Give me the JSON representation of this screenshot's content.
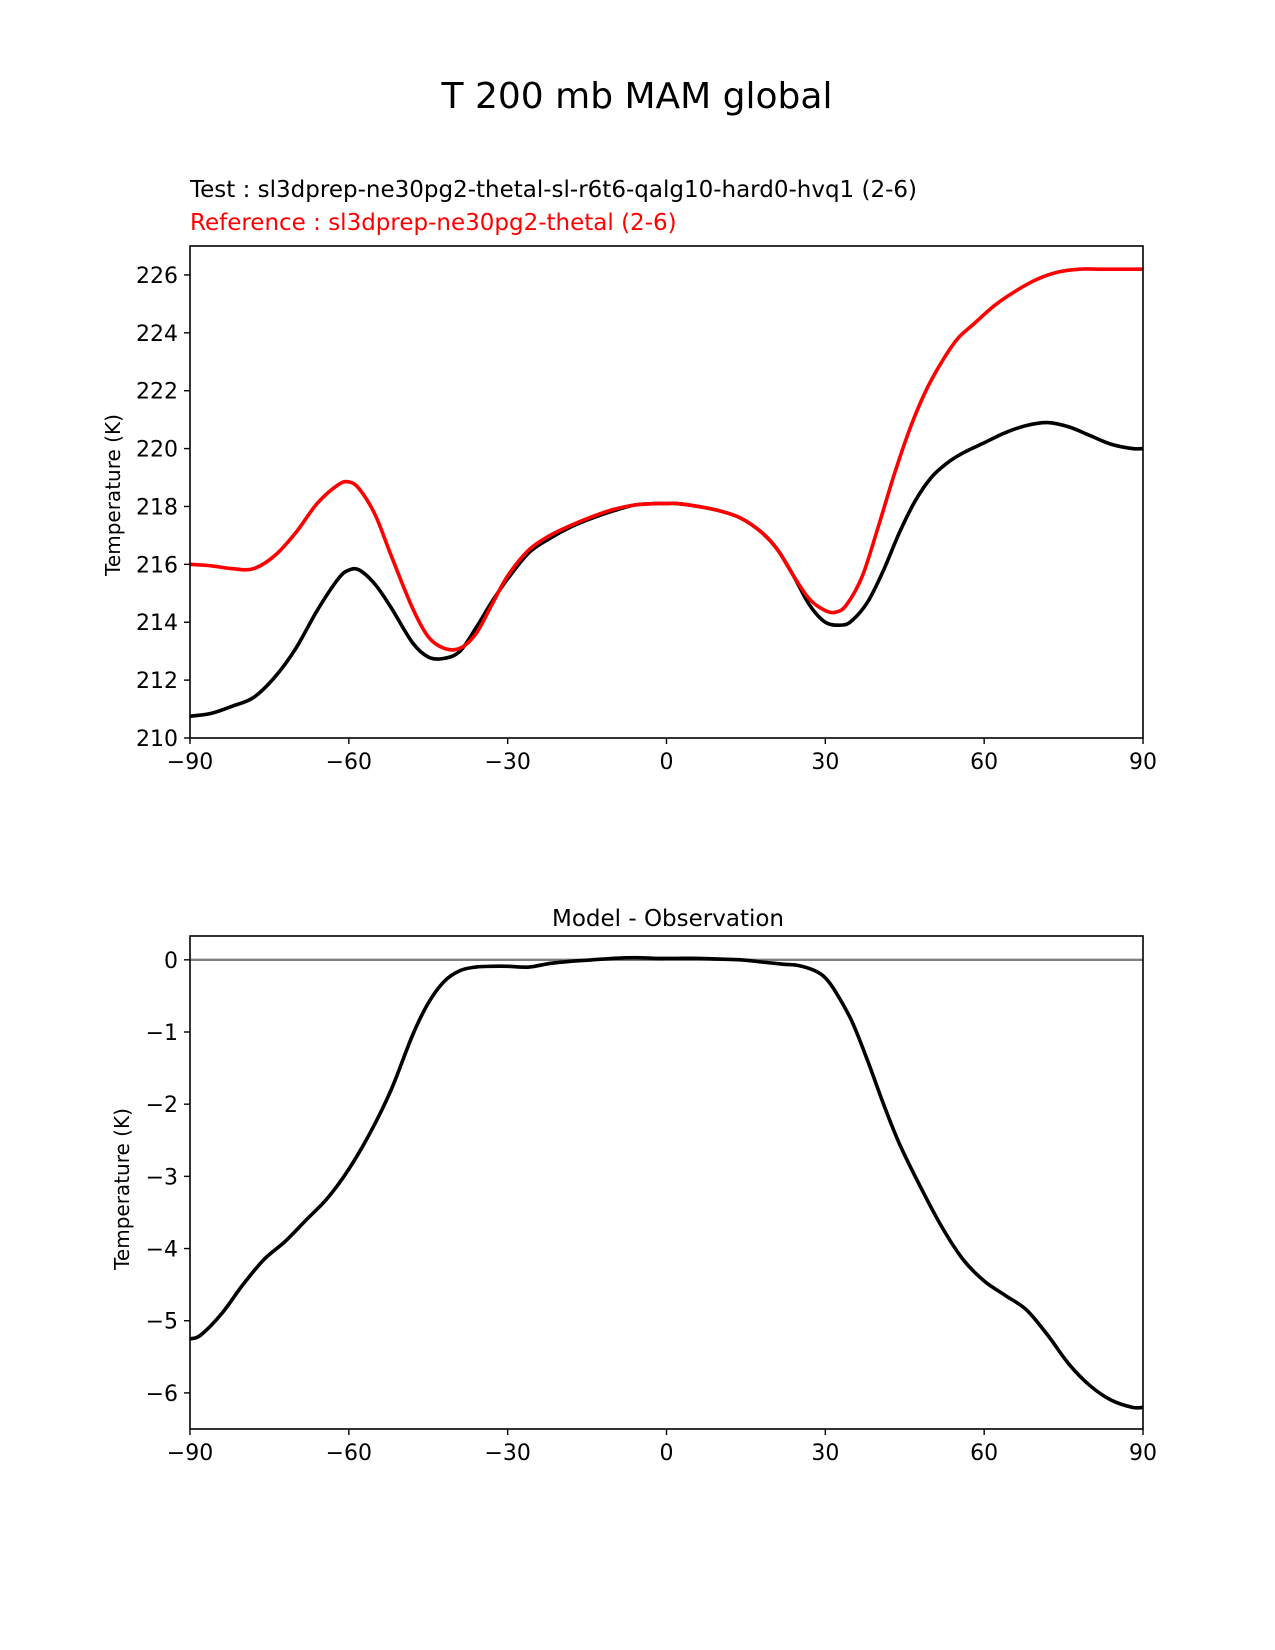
{
  "figure": {
    "title": "T 200 mb MAM global",
    "test_label": "Test : sl3dprep-ne30pg2-thetal-sl-r6t6-qalg10-hard0-hvq1 (2-6)",
    "reference_label": "Reference : sl3dprep-ne30pg2-thetal (2-6)"
  },
  "colors": {
    "test": "#000000",
    "reference": "#ff0000",
    "zero_line": "#808080"
  },
  "chart_data": [
    {
      "type": "line",
      "title": "",
      "xlabel": "",
      "ylabel": "Temperature (K)",
      "xlim": [
        -90,
        90
      ],
      "ylim": [
        210,
        227
      ],
      "xticks": [
        -90,
        -60,
        -30,
        0,
        30,
        60,
        90
      ],
      "xtick_labels": [
        "−90",
        "−60",
        "−30",
        "0",
        "30",
        "60",
        "90"
      ],
      "yticks": [
        210,
        212,
        214,
        216,
        218,
        220,
        222,
        224,
        226
      ],
      "ytick_labels": [
        "210",
        "212",
        "214",
        "216",
        "218",
        "220",
        "222",
        "224",
        "226"
      ],
      "grid": false,
      "series": [
        {
          "role": "test",
          "x": [
            -90,
            -86,
            -82,
            -78,
            -74,
            -70,
            -66,
            -62,
            -60,
            -58,
            -55,
            -52,
            -48,
            -45,
            -42,
            -39,
            -36,
            -33,
            -30,
            -26,
            -22,
            -18,
            -14,
            -10,
            -6,
            -2,
            0,
            2,
            6,
            10,
            14,
            18,
            21,
            24,
            27,
            30,
            33,
            35,
            38,
            41,
            44,
            47,
            50,
            53,
            56,
            60,
            64,
            68,
            72,
            76,
            80,
            84,
            88,
            90
          ],
          "y": [
            210.75,
            210.85,
            211.1,
            211.4,
            212.1,
            213.1,
            214.4,
            215.5,
            215.8,
            215.8,
            215.3,
            214.5,
            213.3,
            212.8,
            212.75,
            213.0,
            213.8,
            214.7,
            215.5,
            216.4,
            216.9,
            217.3,
            217.6,
            217.85,
            218.05,
            218.1,
            218.1,
            218.1,
            218.0,
            217.85,
            217.6,
            217.1,
            216.5,
            215.6,
            214.6,
            214.0,
            213.9,
            214.05,
            214.7,
            215.8,
            217.1,
            218.2,
            219.0,
            219.5,
            219.85,
            220.2,
            220.55,
            220.8,
            220.9,
            220.75,
            220.45,
            220.15,
            220.0,
            220.0
          ]
        },
        {
          "role": "reference",
          "x": [
            -90,
            -86,
            -82,
            -78,
            -74,
            -70,
            -66,
            -62,
            -60,
            -58,
            -55,
            -52,
            -48,
            -45,
            -42,
            -39,
            -36,
            -33,
            -30,
            -26,
            -22,
            -18,
            -14,
            -10,
            -6,
            -2,
            0,
            2,
            6,
            10,
            14,
            18,
            21,
            24,
            27,
            30,
            32,
            34,
            37,
            40,
            43,
            46,
            49,
            52,
            55,
            58,
            62,
            66,
            70,
            74,
            78,
            82,
            86,
            90
          ],
          "y": [
            216.0,
            215.95,
            215.85,
            215.85,
            216.3,
            217.1,
            218.1,
            218.75,
            218.85,
            218.6,
            217.7,
            216.3,
            214.5,
            213.5,
            213.1,
            213.1,
            213.6,
            214.6,
            215.6,
            216.5,
            217.0,
            217.35,
            217.65,
            217.9,
            218.05,
            218.1,
            218.1,
            218.1,
            218.0,
            217.85,
            217.6,
            217.1,
            216.5,
            215.6,
            214.8,
            214.4,
            214.35,
            214.6,
            215.6,
            217.3,
            219.1,
            220.7,
            222.0,
            223.0,
            223.8,
            224.3,
            224.95,
            225.45,
            225.85,
            226.1,
            226.2,
            226.2,
            226.2,
            226.2
          ]
        }
      ]
    },
    {
      "type": "line",
      "title": "Model - Observation",
      "xlabel": "",
      "ylabel": "Temperature (K)",
      "xlim": [
        -90,
        90
      ],
      "ylim": [
        -6.5,
        0.33
      ],
      "xticks": [
        -90,
        -60,
        -30,
        0,
        30,
        60,
        90
      ],
      "xtick_labels": [
        "−90",
        "−60",
        "−30",
        "0",
        "30",
        "60",
        "90"
      ],
      "yticks": [
        0,
        -1,
        -2,
        -3,
        -4,
        -5,
        -6
      ],
      "ytick_labels": [
        "0",
        "−1",
        "−2",
        "−3",
        "−4",
        "−5",
        "−6"
      ],
      "grid": false,
      "reference_line_y": 0,
      "series": [
        {
          "role": "difference",
          "x": [
            -90,
            -88,
            -84,
            -80,
            -76,
            -72,
            -68,
            -64,
            -60,
            -56,
            -52,
            -48,
            -45,
            -42,
            -39,
            -36,
            -33,
            -30,
            -26,
            -22,
            -18,
            -14,
            -10,
            -6,
            -2,
            0,
            2,
            6,
            10,
            14,
            18,
            22,
            25,
            28,
            30,
            32,
            35,
            38,
            41,
            44,
            48,
            52,
            56,
            60,
            64,
            68,
            72,
            76,
            80,
            84,
            88,
            90
          ],
          "y": [
            -5.25,
            -5.2,
            -4.9,
            -4.5,
            -4.15,
            -3.9,
            -3.6,
            -3.3,
            -2.9,
            -2.4,
            -1.8,
            -1.05,
            -0.6,
            -0.3,
            -0.15,
            -0.1,
            -0.09,
            -0.09,
            -0.1,
            -0.05,
            -0.02,
            0.0,
            0.02,
            0.03,
            0.02,
            0.02,
            0.02,
            0.02,
            0.01,
            0.0,
            -0.03,
            -0.06,
            -0.08,
            -0.15,
            -0.25,
            -0.45,
            -0.85,
            -1.4,
            -2.0,
            -2.55,
            -3.15,
            -3.7,
            -4.15,
            -4.45,
            -4.65,
            -4.85,
            -5.2,
            -5.6,
            -5.9,
            -6.1,
            -6.2,
            -6.2
          ]
        }
      ]
    }
  ]
}
